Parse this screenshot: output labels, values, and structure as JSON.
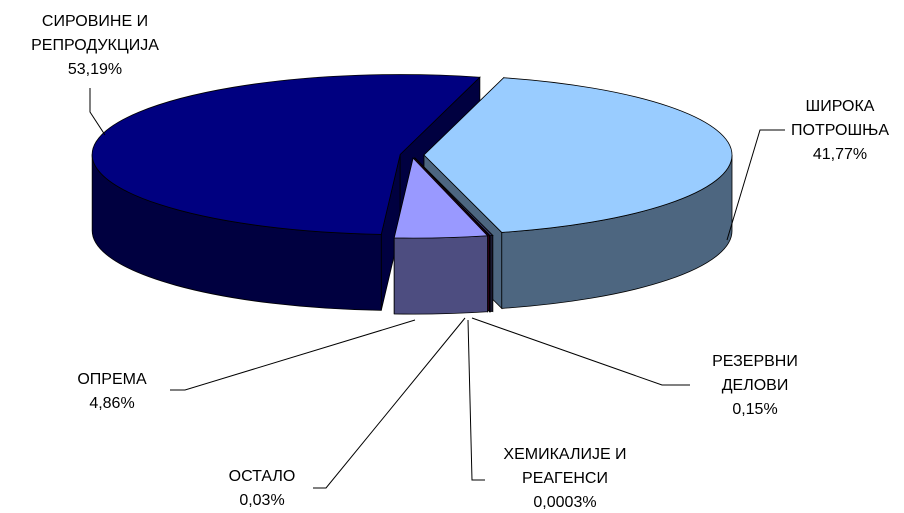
{
  "chart_data": {
    "type": "pie3d",
    "categories": [
      "ШИРОКА\nПОТРОШЊА",
      "РЕЗЕРВНИ\nДЕЛОВИ",
      "ХЕМИКАЛИЈЕ И\nРЕАГЕНСИ",
      "ОСТАЛО",
      "ОПРЕМА",
      "СИРОВИНЕ И\nРЕПРОДУКЦИЈА"
    ],
    "values": [
      41.77,
      0.15,
      0.0003,
      0.03,
      4.86,
      53.19
    ],
    "value_labels": [
      "41,77%",
      "0,15%",
      "0,0003%",
      "0,03%",
      "4,86%",
      "53,19%"
    ],
    "colors": [
      "#99ccff",
      "#333366",
      "#993366",
      "#660033",
      "#9999ff",
      "#000080"
    ]
  }
}
